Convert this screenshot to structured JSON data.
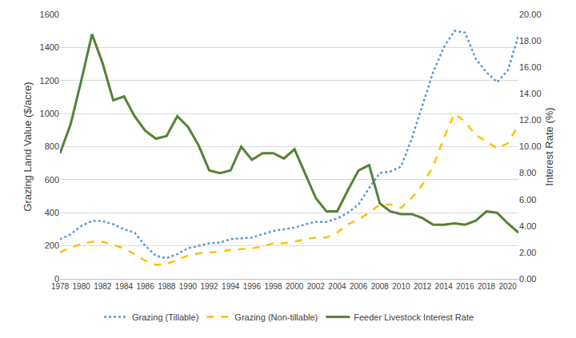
{
  "chart_data": {
    "type": "line",
    "x": [
      1978,
      1979,
      1980,
      1981,
      1982,
      1983,
      1984,
      1985,
      1986,
      1987,
      1988,
      1989,
      1990,
      1991,
      1992,
      1993,
      1994,
      1995,
      1996,
      1997,
      1998,
      1999,
      2000,
      2001,
      2002,
      2003,
      2004,
      2005,
      2006,
      2007,
      2008,
      2009,
      2010,
      2011,
      2012,
      2013,
      2014,
      2015,
      2016,
      2017,
      2018,
      2019,
      2020,
      2021
    ],
    "series": [
      {
        "name": "Grazing (Tillable)",
        "color": "#5b9bd5",
        "line_style": "dot",
        "values": [
          240,
          270,
          320,
          350,
          350,
          330,
          300,
          280,
          200,
          140,
          125,
          150,
          185,
          200,
          215,
          220,
          240,
          245,
          250,
          270,
          290,
          300,
          310,
          330,
          345,
          345,
          365,
          400,
          450,
          550,
          640,
          650,
          680,
          850,
          1050,
          1250,
          1400,
          1500,
          1490,
          1330,
          1250,
          1190,
          1260,
          1470
        ]
      },
      {
        "name": "Grazing (Non-tillable)",
        "color": "#ffc000",
        "line_style": "dash",
        "values": [
          160,
          190,
          210,
          225,
          225,
          205,
          185,
          150,
          110,
          85,
          90,
          115,
          140,
          155,
          160,
          165,
          175,
          180,
          185,
          195,
          215,
          215,
          225,
          240,
          250,
          250,
          280,
          330,
          360,
          400,
          450,
          450,
          430,
          490,
          570,
          680,
          850,
          1000,
          950,
          870,
          830,
          790,
          820,
          930
        ]
      },
      {
        "name": "Feeder Livestock Interest Rate",
        "color": "#548235",
        "line_style": "solid",
        "axis": "y2",
        "values": [
          9.5,
          11.7,
          15.0,
          18.5,
          16.3,
          13.5,
          13.8,
          12.3,
          11.2,
          10.6,
          10.8,
          12.3,
          11.5,
          10.1,
          8.2,
          8.0,
          8.2,
          10.0,
          9.0,
          9.5,
          9.5,
          9.1,
          9.8,
          7.9,
          6.1,
          5.1,
          5.1,
          6.7,
          8.2,
          8.6,
          5.7,
          5.1,
          4.9,
          4.9,
          4.6,
          4.1,
          4.1,
          4.2,
          4.1,
          4.4,
          5.1,
          5.0,
          4.2,
          3.5
        ]
      }
    ],
    "y_label": "Grazing Land Value ($/acre)",
    "y2_label": "Interest Rate (%)",
    "xlim": [
      1978,
      2021
    ],
    "xticks": [
      1978,
      1980,
      1982,
      1984,
      1986,
      1988,
      1990,
      1992,
      1994,
      1996,
      1998,
      2000,
      2002,
      2004,
      2006,
      2008,
      2010,
      2012,
      2014,
      2016,
      2018,
      2020
    ],
    "ylim": [
      0,
      1600
    ],
    "yticks": [
      0,
      200,
      400,
      600,
      800,
      1000,
      1200,
      1400,
      1600
    ],
    "y2lim": [
      0,
      20
    ],
    "y2ticks": [
      {
        "value": 0,
        "label": "0.00"
      },
      {
        "value": 2,
        "label": "2.00"
      },
      {
        "value": 4,
        "label": "4.00"
      },
      {
        "value": 6,
        "label": "6.00"
      },
      {
        "value": 8,
        "label": "8.00"
      },
      {
        "value": 10,
        "label": "10.00"
      },
      {
        "value": 12,
        "label": "12.00"
      },
      {
        "value": 14,
        "label": "14.00"
      },
      {
        "value": 16,
        "label": "16.00"
      },
      {
        "value": 18,
        "label": "18.00"
      },
      {
        "value": 20,
        "label": "20.00"
      }
    ],
    "grid": true,
    "legend": "bottom"
  }
}
